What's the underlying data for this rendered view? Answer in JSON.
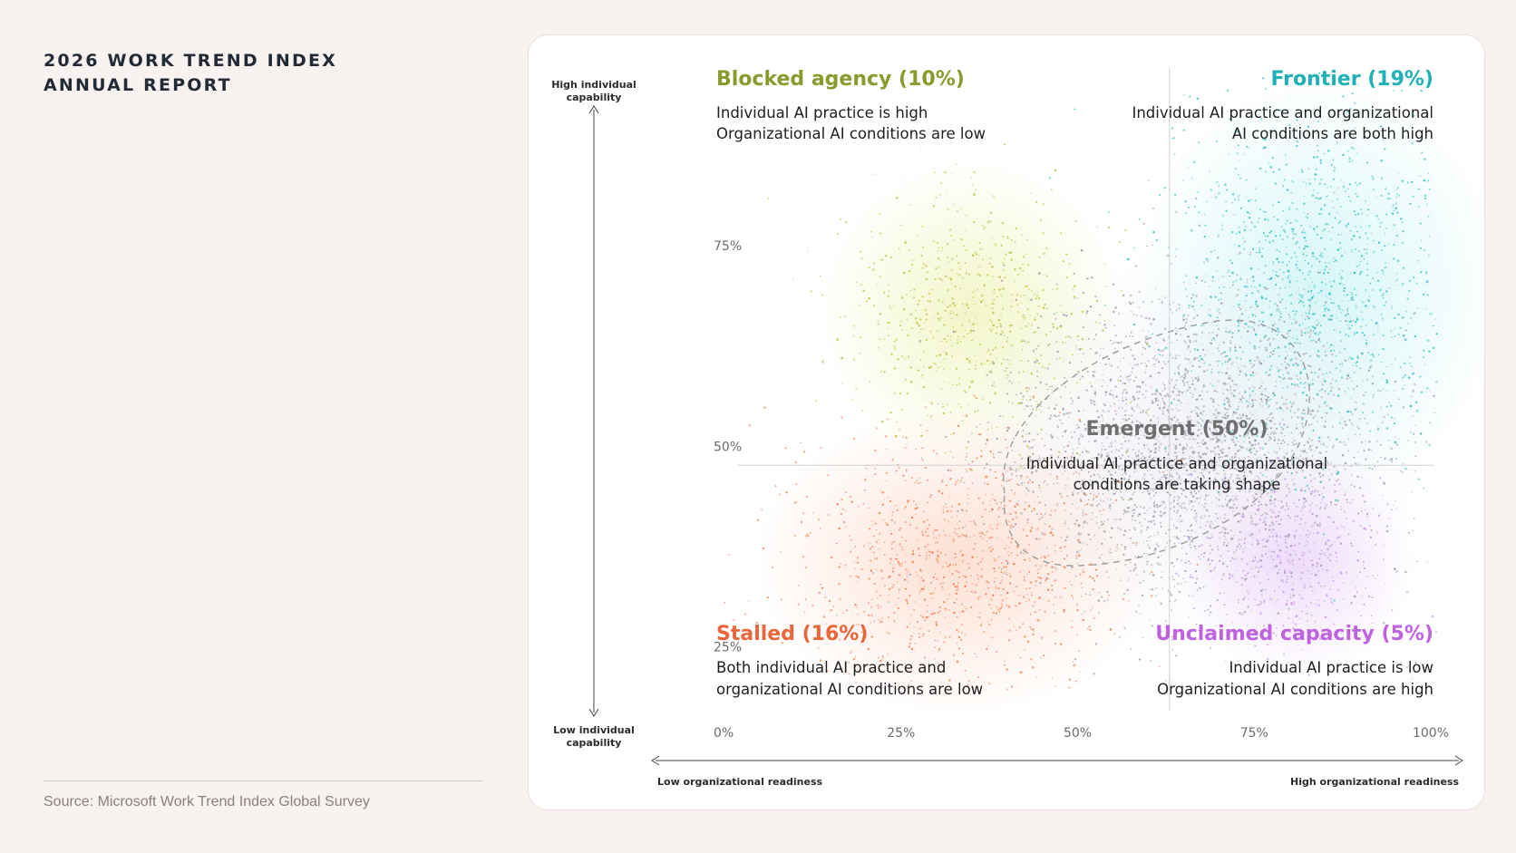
{
  "header": {
    "title_line1": "2026 WORK TREND INDEX",
    "title_line2": "ANNUAL REPORT"
  },
  "footer": {
    "source": "Source: Microsoft Work Trend Index Global Survey"
  },
  "chart_data": {
    "type": "scatter",
    "x_axis": {
      "ticks": [
        "0%",
        "25%",
        "50%",
        "75%",
        "100%"
      ],
      "tick_values": [
        0,
        25,
        50,
        75,
        100
      ],
      "range": [
        0,
        100
      ],
      "low_label": "Low organizational readiness",
      "high_label": "High organizational readiness"
    },
    "y_axis": {
      "ticks": [
        "25%",
        "50%",
        "75%"
      ],
      "tick_values": [
        25,
        50,
        75
      ],
      "range": [
        22,
        100
      ],
      "high_label_line1": "High individual",
      "high_label_line2": "capability",
      "low_label_line1": "Low individual",
      "low_label_line2": "capability"
    },
    "quadrant_dividers": {
      "x": 63,
      "y": 50
    },
    "grid": false,
    "segments": [
      {
        "key": "blocked",
        "title": "Blocked agency (10%)",
        "share": 10,
        "color": "#8a9a2c",
        "dot_color": "#b5c23a",
        "desc_line1": "Individual AI practice is high",
        "desc_line2": "Organizational AI conditions are low",
        "center": [
          35,
          69
        ],
        "spread": [
          9,
          8
        ]
      },
      {
        "key": "frontier",
        "title": "Frontier (19%)",
        "share": 19,
        "color": "#1fb0b8",
        "dot_color": "#2ebdc4",
        "desc_line1": "Individual AI practice and organizational",
        "desc_line2": "AI conditions are both high",
        "center": [
          84,
          72
        ],
        "spread": [
          11,
          11
        ]
      },
      {
        "key": "emergent",
        "title": "Emergent (50%)",
        "share": 50,
        "color": "#6f6f6f",
        "dot_color": "#9a9aa6",
        "desc_line1": "Individual AI practice and organizational",
        "desc_line2": "conditions are taking shape",
        "center": [
          66,
          52
        ],
        "spread": [
          14,
          10
        ]
      },
      {
        "key": "stalled",
        "title": "Stalled (16%)",
        "share": 16,
        "color": "#e8663a",
        "dot_color": "#f07a4c",
        "desc_line1": "Both individual AI practice and",
        "desc_line2": "organizational AI conditions are low",
        "center": [
          33,
          38
        ],
        "spread": [
          12,
          8
        ]
      },
      {
        "key": "unclaimed",
        "title": "Unclaimed capacity (5%)",
        "share": 5,
        "color": "#c061e0",
        "dot_color": "#c98bef",
        "desc_line1": "Individual AI practice is low",
        "desc_line2": "Organizational AI conditions are high",
        "center": [
          81,
          38
        ],
        "spread": [
          7,
          6
        ]
      }
    ]
  }
}
